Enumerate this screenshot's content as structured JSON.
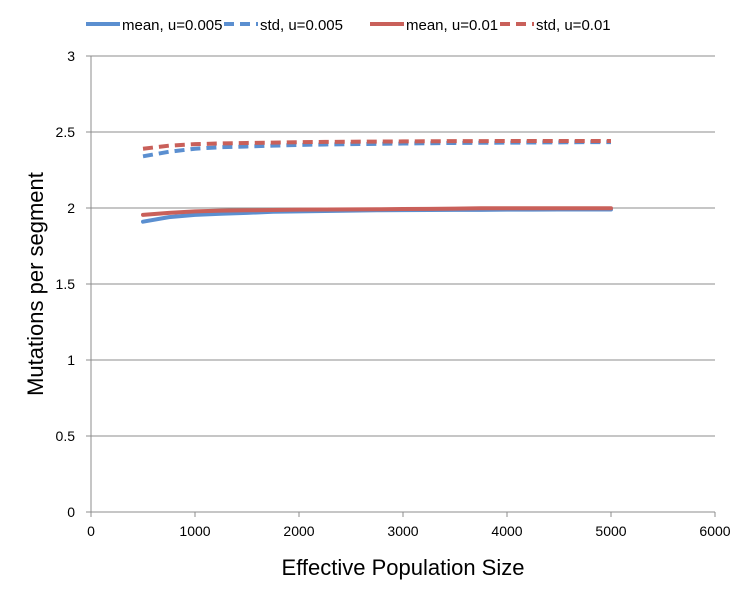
{
  "chart_data": {
    "type": "line",
    "title": "",
    "xlabel": "Effective Population Size",
    "ylabel": "Mutations per segment",
    "xlim": [
      0,
      6000
    ],
    "ylim": [
      0,
      3
    ],
    "xticks": [
      0,
      1000,
      2000,
      3000,
      4000,
      5000,
      6000
    ],
    "yticks": [
      0,
      0.5,
      1,
      1.5,
      2,
      2.5,
      3
    ],
    "xtick_labels": [
      "0",
      "1000",
      "2000",
      "3000",
      "4000",
      "5000",
      "6000"
    ],
    "ytick_labels": [
      "0",
      "0.5",
      "1",
      "1.5",
      "2",
      "2.5",
      "3"
    ],
    "grid": "horizontal",
    "legend_position": "top",
    "x": [
      500,
      750,
      1000,
      1250,
      1500,
      1750,
      2000,
      2250,
      2500,
      2750,
      3000,
      3250,
      3500,
      3750,
      4000,
      4250,
      4500,
      4750,
      5000
    ],
    "series": [
      {
        "name": "mean, u=0.005",
        "color": "#5b8fd0",
        "dash": "solid",
        "values": [
          1.91,
          1.94,
          1.955,
          1.962,
          1.968,
          1.975,
          1.978,
          1.98,
          1.983,
          1.985,
          1.986,
          1.987,
          1.988,
          1.988,
          1.989,
          1.989,
          1.99,
          1.99,
          1.99
        ]
      },
      {
        "name": "std, u=0.005",
        "color": "#5b8fd0",
        "dash": "dashed",
        "values": [
          2.34,
          2.37,
          2.39,
          2.4,
          2.405,
          2.41,
          2.415,
          2.418,
          2.42,
          2.422,
          2.424,
          2.426,
          2.428,
          2.429,
          2.43,
          2.431,
          2.432,
          2.433,
          2.433
        ]
      },
      {
        "name": "mean, u=0.01",
        "color": "#c9605a",
        "dash": "solid",
        "values": [
          1.955,
          1.968,
          1.978,
          1.983,
          1.985,
          1.987,
          1.989,
          1.99,
          1.991,
          1.992,
          1.993,
          1.994,
          1.996,
          1.998,
          1.998,
          1.998,
          1.998,
          1.998,
          1.998
        ]
      },
      {
        "name": "std, u=0.01",
        "color": "#c9605a",
        "dash": "dashed",
        "values": [
          2.39,
          2.41,
          2.42,
          2.425,
          2.428,
          2.43,
          2.433,
          2.435,
          2.436,
          2.437,
          2.438,
          2.439,
          2.44,
          2.44,
          2.441,
          2.441,
          2.441,
          2.441,
          2.441
        ]
      }
    ]
  }
}
